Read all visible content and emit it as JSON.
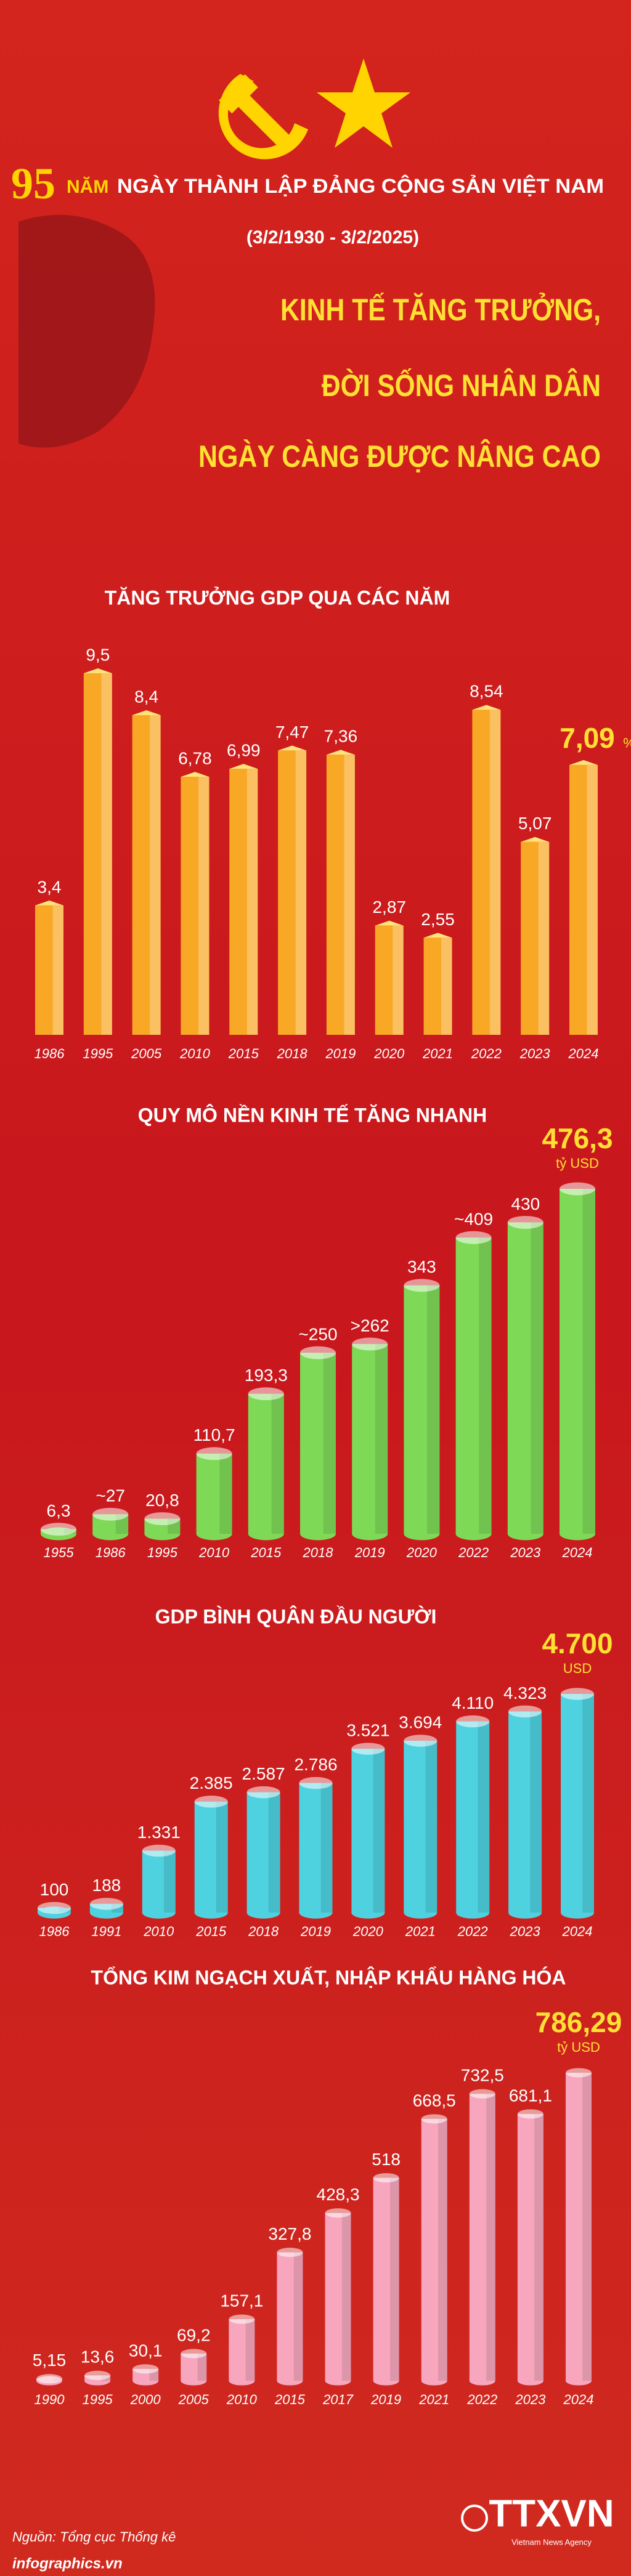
{
  "header": {
    "number": "95",
    "year_word": "NĂM",
    "title": "NGÀY THÀNH LẬP ĐẢNG CỘNG SẢN VIỆT NAM",
    "dates": "(3/2/1930 - 3/2/2025)",
    "headline": [
      "KINH TẾ TĂNG TRƯỞNG,",
      "ĐỜI SỐNG NHÂN DÂN",
      "NGÀY CÀNG ĐƯỢC NÂNG CAO"
    ]
  },
  "chart_data": [
    {
      "type": "bar",
      "title": "TĂNG TRƯỞNG GDP QUA CÁC NĂM",
      "color": "#f9a825",
      "categories": [
        "1986",
        "1995",
        "2005",
        "2010",
        "2015",
        "2018",
        "2019",
        "2020",
        "2021",
        "2022",
        "2023",
        "2024"
      ],
      "values": [
        3.4,
        9.5,
        8.4,
        6.78,
        6.99,
        7.47,
        7.36,
        2.87,
        2.55,
        8.54,
        5.07,
        7.09
      ],
      "value_labels": [
        "3,4",
        "9,5",
        "8,4",
        "6,78",
        "6,99",
        "7,47",
        "7,36",
        "2,87",
        "2,55",
        "8,54",
        "5,07",
        "7,09"
      ],
      "unit": "%"
    },
    {
      "type": "bar",
      "title": "QUY MÔ NỀN KINH TẾ TĂNG NHANH",
      "color": "#7ed957",
      "categories": [
        "1955",
        "1986",
        "1995",
        "2010",
        "2015",
        "2018",
        "2019",
        "2020",
        "2022",
        "2023",
        "2024"
      ],
      "values": [
        6.3,
        27,
        20.8,
        110.7,
        193.3,
        250,
        262,
        343,
        409,
        430,
        476.3
      ],
      "value_labels": [
        "6,3",
        "~27",
        "20,8",
        "110,7",
        "193,3",
        "~250",
        ">262",
        "343",
        "~409",
        "430",
        "476,3"
      ],
      "unit": "tỷ USD"
    },
    {
      "type": "bar",
      "title": "GDP BÌNH QUÂN ĐẦU NGƯỜI",
      "color": "#4fd2e0",
      "categories": [
        "1986",
        "1991",
        "2010",
        "2015",
        "2018",
        "2019",
        "2020",
        "2021",
        "2022",
        "2023",
        "2024"
      ],
      "values": [
        100,
        188,
        1331,
        2385,
        2587,
        2786,
        3521,
        3694,
        4110,
        4323,
        4700
      ],
      "value_labels": [
        "100",
        "188",
        "1.331",
        "2.385",
        "2.587",
        "2.786",
        "3.521",
        "3.694",
        "4.110",
        "4.323",
        "4.700"
      ],
      "unit": "USD"
    },
    {
      "type": "bar",
      "title": "TỔNG KIM NGẠCH XUẤT, NHẬP KHẨU HÀNG HÓA",
      "color": "#f7a6bd",
      "categories": [
        "1990",
        "1995",
        "2000",
        "2005",
        "2010",
        "2015",
        "2017",
        "2019",
        "2021",
        "2022",
        "2023",
        "2024"
      ],
      "values": [
        5.15,
        13.6,
        30.1,
        69.2,
        157.1,
        327.8,
        428.3,
        518,
        668.5,
        732.5,
        681.1,
        786.29
      ],
      "value_labels": [
        "5,15",
        "13,6",
        "30,1",
        "69,2",
        "157,1",
        "327,8",
        "428,3",
        "518",
        "668,5",
        "732,5",
        "681,1",
        "786,29"
      ],
      "unit": "tỷ USD"
    }
  ],
  "footer": {
    "source": "Nguồn: Tổng cục Thống kê",
    "site": "infographics.vn",
    "logo": "TTXVN",
    "agency": "Vietnam News Agency"
  }
}
